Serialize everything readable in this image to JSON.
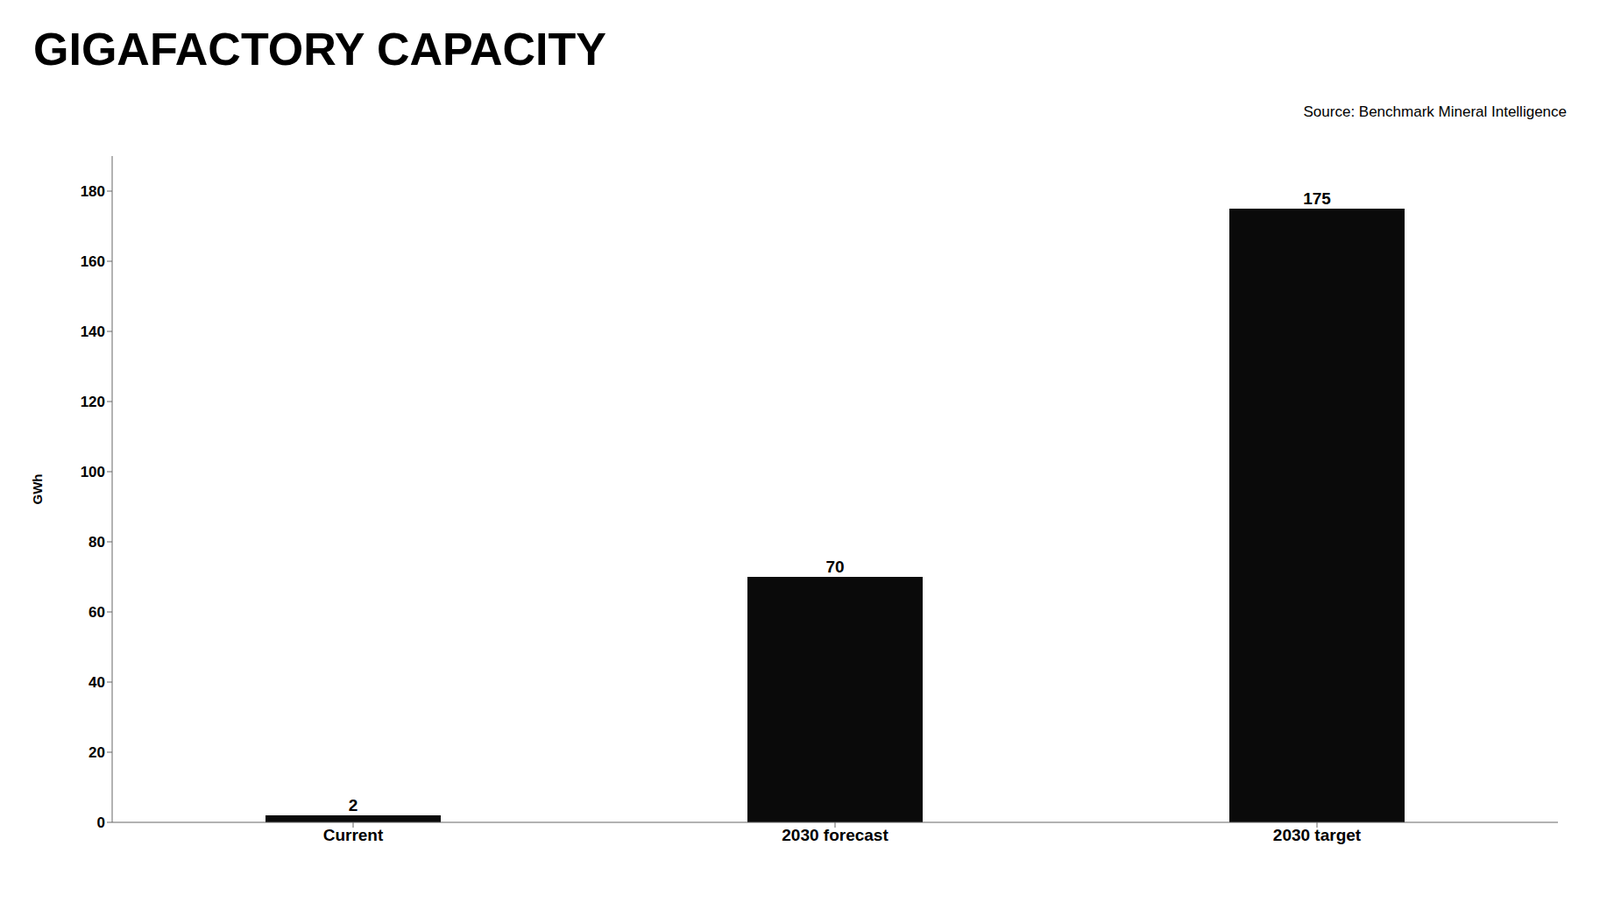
{
  "chart_data": {
    "type": "bar",
    "title": "GIGAFACTORY CAPACITY",
    "annotations": [
      "Source: Benchmark Mineral Intelligence"
    ],
    "categories": [
      "Current",
      "2030 forecast",
      "2030 target"
    ],
    "values": [
      2,
      70,
      175
    ],
    "color": "#0a0a0a",
    "ylabel": "GWh",
    "ylim": [
      0,
      190
    ],
    "yticks": [
      0,
      20,
      40,
      60,
      80,
      100,
      120,
      140,
      160,
      180
    ],
    "grid": false,
    "data_labels": true
  }
}
